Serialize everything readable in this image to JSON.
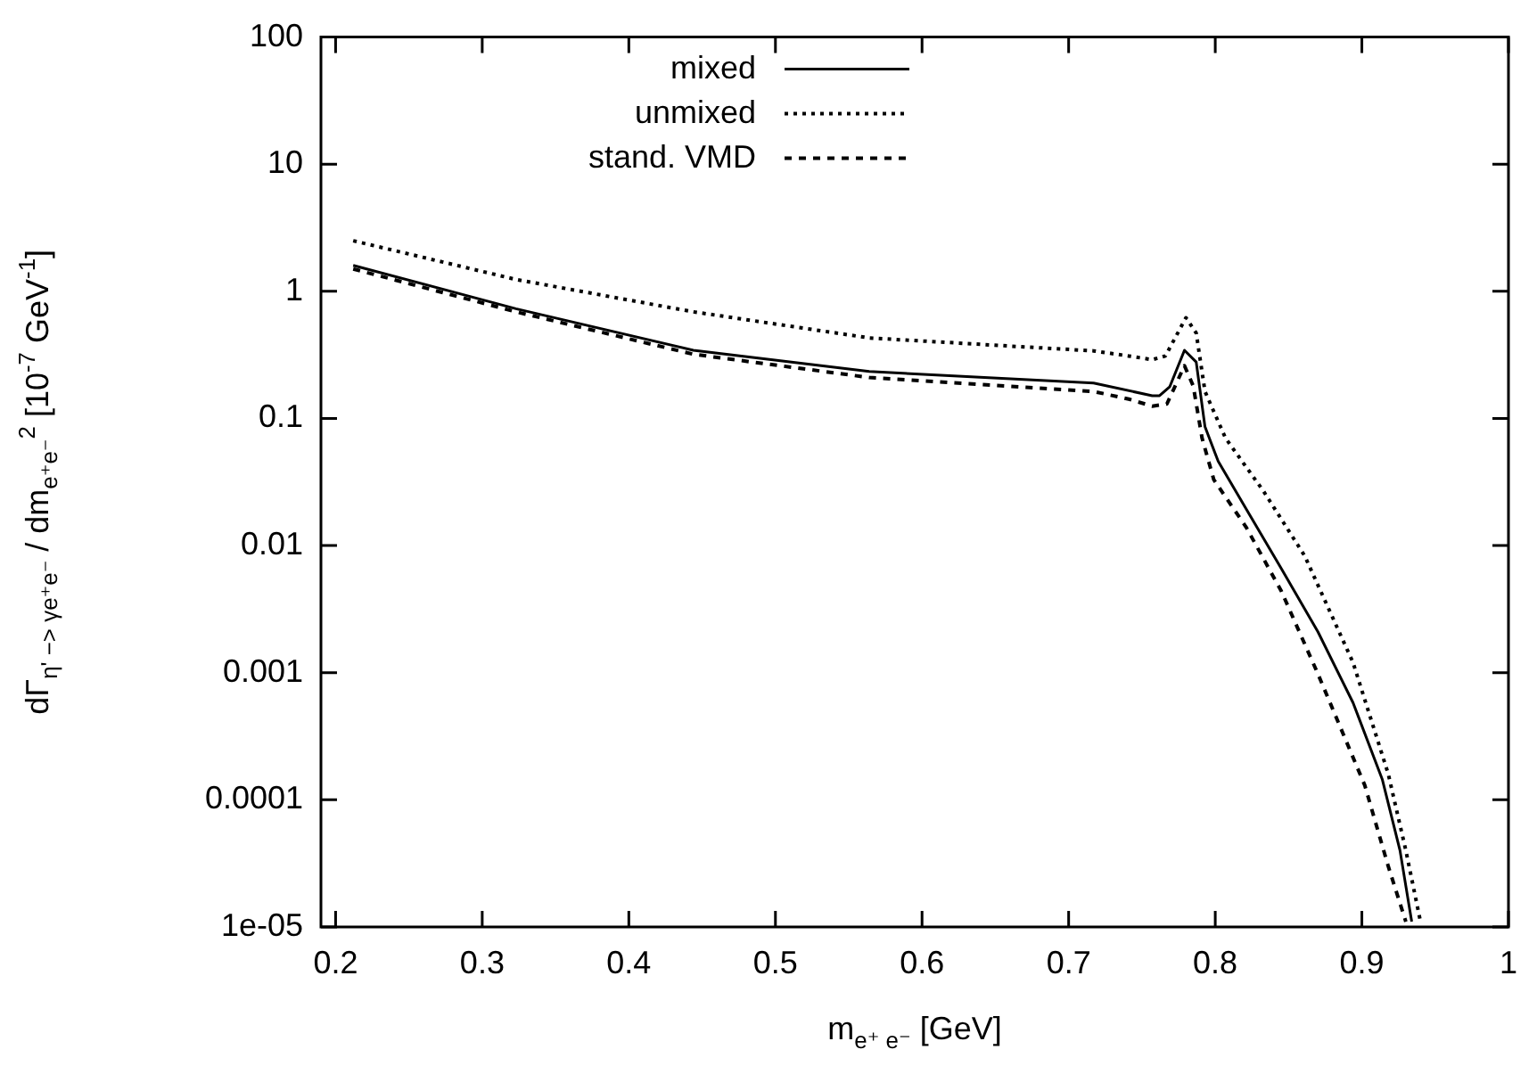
{
  "chart_data": {
    "type": "line",
    "xlabel": "m$_{e⁺ e⁻}$ [GeV]",
    "ylabel": "dΓ$_{η' −> γe⁺e⁻}$ / dm$_{e⁺e⁻}$$^{2}$ [10$^{-7}$ GeV$^{-1}$]",
    "log": "y",
    "xlim": [
      0.19,
      1
    ],
    "xticks": [
      0.2,
      0.3,
      0.4,
      0.5,
      0.6,
      0.7,
      0.8,
      0.9,
      1
    ],
    "ylim": [
      1e-05,
      100
    ],
    "yticks": [
      {
        "value": 1e-05,
        "label": "1e-05"
      },
      0.0001,
      0.001,
      0.01,
      0.1,
      1,
      10,
      100
    ],
    "legend": "top left",
    "grid": false,
    "marker": "none",
    "series": [
      {
        "name": "mixed",
        "color": "#000000",
        "line_style": "solid",
        "x": [
          0.212,
          0.323,
          0.444,
          0.564,
          0.717,
          0.757,
          0.762,
          0.769,
          0.779,
          0.787,
          0.793,
          0.802,
          0.821,
          0.845,
          0.87,
          0.894,
          0.914,
          0.926,
          0.934
        ],
        "values": [
          1.6,
          0.73,
          0.344,
          0.234,
          0.19,
          0.151,
          0.151,
          0.178,
          0.344,
          0.278,
          0.086,
          0.046,
          0.0195,
          0.0066,
          0.0021,
          0.00058,
          0.000144,
          4e-05,
          1.1e-05
        ]
      },
      {
        "name": "unmixed",
        "color": "#000000",
        "line_style": "dotted",
        "x": [
          0.212,
          0.323,
          0.444,
          0.564,
          0.717,
          0.741,
          0.757,
          0.766,
          0.78,
          0.787,
          0.793,
          0.807,
          0.833,
          0.861,
          0.894,
          0.918,
          0.93,
          0.94
        ],
        "values": [
          2.5,
          1.24,
          0.69,
          0.43,
          0.34,
          0.31,
          0.29,
          0.31,
          0.62,
          0.47,
          0.163,
          0.07,
          0.0267,
          0.0083,
          0.0012,
          0.00016,
          4e-05,
          1.1e-05
        ]
      },
      {
        "name": "stand. VMD",
        "color": "#000000",
        "line_style": "dashed",
        "x": [
          0.212,
          0.323,
          0.444,
          0.564,
          0.717,
          0.741,
          0.757,
          0.767,
          0.779,
          0.785,
          0.791,
          0.799,
          0.821,
          0.845,
          0.87,
          0.902,
          0.918,
          0.93
        ],
        "values": [
          1.5,
          0.69,
          0.32,
          0.21,
          0.163,
          0.142,
          0.125,
          0.13,
          0.26,
          0.18,
          0.07,
          0.033,
          0.014,
          0.0044,
          0.00098,
          0.00013,
          3e-05,
          1.1e-05
        ]
      }
    ]
  }
}
